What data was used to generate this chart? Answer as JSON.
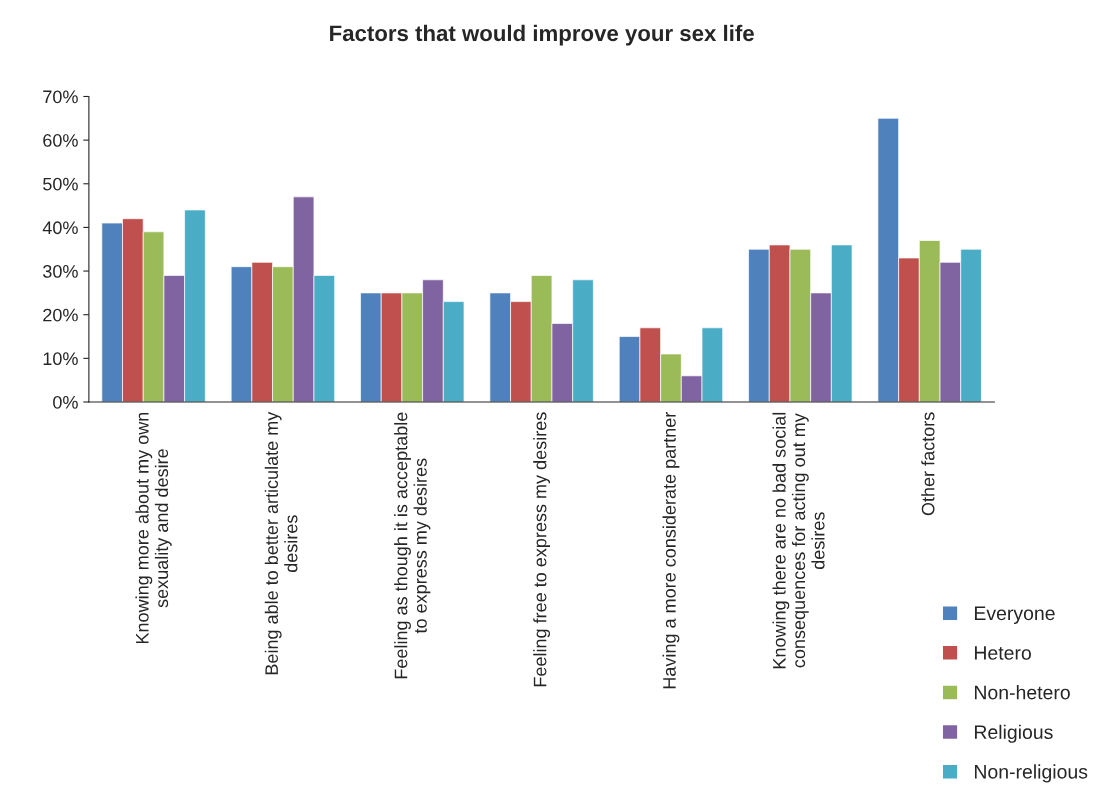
{
  "chart_data": {
    "type": "bar",
    "title": "Factors that would improve your sex life",
    "categories": [
      "Knowing more about my own\nsexuality and desire",
      "Being able to better articulate my\ndesires",
      "Feeling as though it is acceptable\nto express my desires",
      "Feeling free to express my desires",
      "Having a more considerate partner",
      "Knowing there are no bad social\nconsequences for acting out my\ndesires",
      "Other factors"
    ],
    "series": [
      {
        "name": "Everyone",
        "color": "#4f81bd",
        "values": [
          41,
          31,
          25,
          25,
          15,
          35,
          65
        ]
      },
      {
        "name": "Hetero",
        "color": "#c0504d",
        "values": [
          42,
          32,
          25,
          23,
          17,
          36,
          33
        ]
      },
      {
        "name": "Non-hetero",
        "color": "#9bbb59",
        "values": [
          39,
          31,
          25,
          29,
          11,
          35,
          37
        ]
      },
      {
        "name": "Religious",
        "color": "#8064a2",
        "values": [
          29,
          47,
          28,
          18,
          6,
          25,
          32
        ]
      },
      {
        "name": "Non-religious",
        "color": "#4bacc6",
        "values": [
          44,
          29,
          23,
          28,
          17,
          36,
          35
        ]
      }
    ],
    "ylim": [
      0,
      70
    ],
    "yticks": [
      {
        "value": 0,
        "label": "0%"
      },
      {
        "value": 10,
        "label": "10%"
      },
      {
        "value": 20,
        "label": "20%"
      },
      {
        "value": 30,
        "label": "30%"
      },
      {
        "value": 40,
        "label": "40%"
      },
      {
        "value": 50,
        "label": "50%"
      },
      {
        "value": 60,
        "label": "60%"
      },
      {
        "value": 70,
        "label": "70%"
      }
    ],
    "grid": false,
    "legend": "bottom right"
  }
}
